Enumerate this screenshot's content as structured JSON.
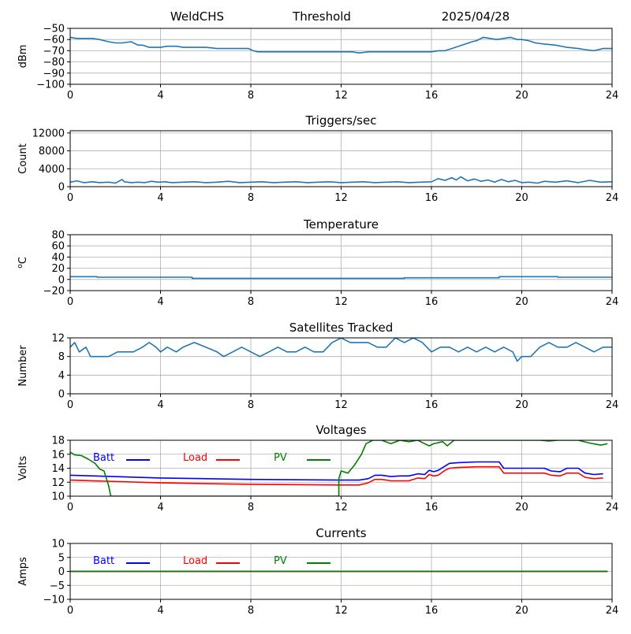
{
  "header": {
    "site": "WeldCHS",
    "metric": "Threshold",
    "date": "2025/04/28"
  },
  "chart_data": [
    {
      "id": "threshold",
      "type": "line",
      "title": "",
      "ylabel": "dBm",
      "xlim": [
        0,
        24
      ],
      "ylim": [
        -100,
        -50
      ],
      "xticks": [
        0,
        4,
        8,
        12,
        16,
        20,
        24
      ],
      "yticks": [
        -100,
        -90,
        -80,
        -70,
        -60,
        -50
      ],
      "grid": true,
      "series": [
        {
          "color": "#1f77b4",
          "x": [
            0,
            0.3,
            0.6,
            1.0,
            1.3,
            1.7,
            2.0,
            2.3,
            2.7,
            3.0,
            3.2,
            3.5,
            3.8,
            4.0,
            4.3,
            4.7,
            5.0,
            5.5,
            6.0,
            6.5,
            7.0,
            7.5,
            7.9,
            8.1,
            8.3,
            8.6,
            9.0,
            9.5,
            10,
            10.5,
            11,
            11.5,
            12,
            12.5,
            12.8,
            13.2,
            13.6,
            14,
            14.5,
            15,
            15.5,
            16,
            16.3,
            16.6,
            16.9,
            17.2,
            17.5,
            17.8,
            18.0,
            18.3,
            18.6,
            18.9,
            19.2,
            19.5,
            19.8,
            20.0,
            20.3,
            20.6,
            21.0,
            21.5,
            22,
            22.5,
            22.8,
            23.2,
            23.6,
            24
          ],
          "y": [
            -58,
            -59,
            -59,
            -59,
            -60,
            -62,
            -63,
            -63,
            -62,
            -65,
            -65,
            -67,
            -67,
            -67,
            -66,
            -66,
            -67,
            -67,
            -67,
            -68,
            -68,
            -68,
            -68,
            -70,
            -71,
            -71,
            -71,
            -71,
            -71,
            -71,
            -71,
            -71,
            -71,
            -71,
            -72,
            -71,
            -71,
            -71,
            -71,
            -71,
            -71,
            -71,
            -70,
            -70,
            -68,
            -66,
            -64,
            -62,
            -61,
            -58,
            -59,
            -60,
            -59,
            -58,
            -60,
            -60,
            -61,
            -63,
            -64,
            -65,
            -67,
            -68,
            -69,
            -70,
            -68,
            -68
          ]
        }
      ]
    },
    {
      "id": "triggers",
      "type": "line",
      "title": "Triggers/sec",
      "ylabel": "Count",
      "xlim": [
        0,
        24
      ],
      "ylim": [
        0,
        12500
      ],
      "xticks": [
        0,
        4,
        8,
        12,
        16,
        20,
        24
      ],
      "yticks": [
        0,
        4000,
        8000,
        12000
      ],
      "grid": true,
      "series": [
        {
          "color": "#1f77b4",
          "x": [
            0,
            0.3,
            0.6,
            1.0,
            1.3,
            1.7,
            2.0,
            2.3,
            2.4,
            2.7,
            3.0,
            3.3,
            3.6,
            3.9,
            4.2,
            4.5,
            5.0,
            5.5,
            6.0,
            6.5,
            7.0,
            7.5,
            8.0,
            8.5,
            9.0,
            9.5,
            10,
            10.5,
            11,
            11.5,
            12,
            12.5,
            13,
            13.5,
            14,
            14.5,
            15,
            15.5,
            16,
            16.3,
            16.6,
            16.9,
            17.1,
            17.3,
            17.6,
            17.9,
            18.2,
            18.5,
            18.8,
            19.1,
            19.4,
            19.7,
            20.0,
            20.3,
            20.7,
            21,
            21.5,
            22,
            22.5,
            23,
            23.5,
            24
          ],
          "y": [
            1000,
            1300,
            900,
            1100,
            900,
            1000,
            800,
            1600,
            1100,
            900,
            1000,
            900,
            1200,
            1000,
            1100,
            900,
            1000,
            1100,
            900,
            1000,
            1200,
            900,
            1000,
            1100,
            900,
            1000,
            1100,
            900,
            1000,
            1100,
            900,
            1000,
            1100,
            900,
            1000,
            1100,
            900,
            1000,
            1100,
            1800,
            1400,
            2000,
            1500,
            2200,
            1300,
            1700,
            1200,
            1500,
            1000,
            1600,
            1100,
            1400,
            900,
            1000,
            800,
            1200,
            1000,
            1300,
            900,
            1400,
            1000,
            1100
          ]
        }
      ]
    },
    {
      "id": "temperature",
      "type": "line",
      "title": "Temperature",
      "ylabel": "°C",
      "xlim": [
        0,
        24
      ],
      "ylim": [
        -20,
        80
      ],
      "xticks": [
        0,
        4,
        8,
        12,
        16,
        20,
        24
      ],
      "yticks": [
        -20,
        0,
        20,
        40,
        60,
        80
      ],
      "grid": true,
      "series": [
        {
          "color": "#1f77b4",
          "x": [
            0,
            1.2,
            1.2,
            5.4,
            5.4,
            14.8,
            14.8,
            19.0,
            19.0,
            21.6,
            21.6,
            24
          ],
          "y": [
            5,
            5,
            4,
            4,
            2,
            2,
            3,
            3,
            5,
            5,
            4,
            4
          ]
        }
      ]
    },
    {
      "id": "satellites",
      "type": "line",
      "title": "Satellites Tracked",
      "ylabel": "Number",
      "xlim": [
        0,
        24
      ],
      "ylim": [
        0,
        12
      ],
      "xticks": [
        0,
        4,
        8,
        12,
        16,
        20,
        24
      ],
      "yticks": [
        0,
        4,
        8,
        12
      ],
      "grid": true,
      "series": [
        {
          "color": "#1f77b4",
          "x": [
            0,
            0.2,
            0.4,
            0.7,
            0.9,
            1.3,
            1.7,
            2.1,
            2.3,
            2.8,
            3.2,
            3.5,
            3.8,
            4.0,
            4.3,
            4.7,
            5.0,
            5.5,
            6.0,
            6.5,
            6.8,
            7.2,
            7.6,
            8.0,
            8.4,
            8.8,
            9.2,
            9.6,
            10,
            10.4,
            10.8,
            11.2,
            11.6,
            12.0,
            12.4,
            12.8,
            13.2,
            13.6,
            14.0,
            14.4,
            14.8,
            15.2,
            15.6,
            16.0,
            16.4,
            16.8,
            17.2,
            17.6,
            18.0,
            18.4,
            18.8,
            19.2,
            19.6,
            19.8,
            20.0,
            20.4,
            20.8,
            21.2,
            21.6,
            22.0,
            22.4,
            22.8,
            23.2,
            23.6,
            24
          ],
          "y": [
            10,
            11,
            9,
            10,
            8,
            8,
            8,
            9,
            9,
            9,
            10,
            11,
            10,
            9,
            10,
            9,
            10,
            11,
            10,
            9,
            8,
            9,
            10,
            9,
            8,
            9,
            10,
            9,
            9,
            10,
            9,
            9,
            11,
            12,
            11,
            11,
            11,
            10,
            10,
            12,
            11,
            12,
            11,
            9,
            10,
            10,
            9,
            10,
            9,
            10,
            9,
            10,
            9,
            7,
            8,
            8,
            10,
            11,
            10,
            10,
            11,
            10,
            9,
            10,
            10
          ]
        }
      ]
    },
    {
      "id": "voltages",
      "type": "line",
      "title": "Voltages",
      "ylabel": "Volts",
      "xlim": [
        0,
        24
      ],
      "ylim": [
        10,
        18
      ],
      "xticks": [
        0,
        4,
        8,
        12,
        16,
        20,
        24
      ],
      "yticks": [
        10,
        12,
        14,
        16,
        18
      ],
      "grid": true,
      "legend": [
        "Batt",
        "Load",
        "PV"
      ],
      "series": [
        {
          "name": "Batt",
          "color": "#0000ff",
          "x": [
            0,
            4,
            8,
            12,
            12.8,
            13.2,
            13.5,
            13.8,
            14.2,
            14.6,
            15.0,
            15.4,
            15.7,
            15.9,
            16.1,
            16.3,
            16.6,
            16.8,
            17.2,
            18.0,
            19.0,
            19.2,
            20.0,
            21.0,
            21.3,
            21.7,
            22.0,
            22.5,
            22.8,
            23.2,
            23.6
          ],
          "y": [
            13.0,
            12.6,
            12.4,
            12.3,
            12.3,
            12.5,
            13.0,
            13.0,
            12.8,
            12.9,
            12.9,
            13.2,
            13.1,
            13.7,
            13.5,
            13.7,
            14.3,
            14.7,
            14.8,
            14.9,
            14.9,
            14.0,
            14.0,
            14.0,
            13.6,
            13.5,
            14.0,
            14.0,
            13.3,
            13.1,
            13.2
          ]
        },
        {
          "name": "Load",
          "color": "#ff0000",
          "x": [
            0,
            4,
            8,
            12,
            12.8,
            13.2,
            13.5,
            13.8,
            14.2,
            14.6,
            15.0,
            15.4,
            15.7,
            15.9,
            16.1,
            16.3,
            16.6,
            16.8,
            17.2,
            18.0,
            19.0,
            19.2,
            20.0,
            21.0,
            21.3,
            21.7,
            22.0,
            22.5,
            22.8,
            23.2,
            23.6
          ],
          "y": [
            12.3,
            11.9,
            11.7,
            11.6,
            11.6,
            11.9,
            12.4,
            12.4,
            12.2,
            12.2,
            12.2,
            12.6,
            12.5,
            13.1,
            12.9,
            13.0,
            13.7,
            14.0,
            14.1,
            14.2,
            14.2,
            13.3,
            13.3,
            13.3,
            13.0,
            12.9,
            13.3,
            13.3,
            12.7,
            12.5,
            12.6
          ]
        },
        {
          "name": "PV",
          "color": "#008000",
          "x": [
            0,
            0.2,
            0.5,
            0.8,
            1.1,
            1.3,
            1.5,
            1.7,
            1.8,
            1.8,
            11.9,
            11.9,
            12.0,
            12.3,
            12.6,
            12.9,
            13.1,
            13.4,
            13.8,
            14.2,
            14.6,
            15.0,
            15.4,
            15.7,
            15.9,
            16.1,
            16.5,
            16.7,
            17.0,
            18,
            19,
            20,
            20.8,
            21.2,
            21.6,
            22.0,
            22.5,
            23.0,
            23.5,
            23.8
          ],
          "y": [
            16.3,
            15.9,
            15.8,
            15.3,
            14.7,
            13.9,
            13.6,
            11.5,
            10,
            10,
            10,
            12.5,
            13.6,
            13.3,
            14.5,
            16.0,
            17.5,
            18,
            18,
            17.5,
            18,
            17.8,
            18,
            17.5,
            17.2,
            17.5,
            17.8,
            17.2,
            18,
            18,
            18,
            18,
            18,
            17.9,
            18,
            18,
            18,
            17.6,
            17.3,
            17.5
          ]
        }
      ]
    },
    {
      "id": "currents",
      "type": "line",
      "title": "Currents",
      "ylabel": "Amps",
      "xlim": [
        0,
        24
      ],
      "ylim": [
        -10,
        10
      ],
      "xticks": [
        0,
        4,
        8,
        12,
        16,
        20,
        24
      ],
      "yticks": [
        -10,
        -5,
        0,
        5,
        10
      ],
      "grid": true,
      "legend": [
        "Batt",
        "Load",
        "PV"
      ],
      "series": [
        {
          "name": "Batt",
          "color": "#0000ff",
          "x": [
            0,
            23.8
          ],
          "y": [
            0,
            0
          ]
        },
        {
          "name": "Load",
          "color": "#ff0000",
          "x": [
            0,
            23.8
          ],
          "y": [
            0,
            0
          ]
        },
        {
          "name": "PV",
          "color": "#008000",
          "x": [
            0,
            23.8
          ],
          "y": [
            0,
            0
          ]
        }
      ]
    }
  ]
}
